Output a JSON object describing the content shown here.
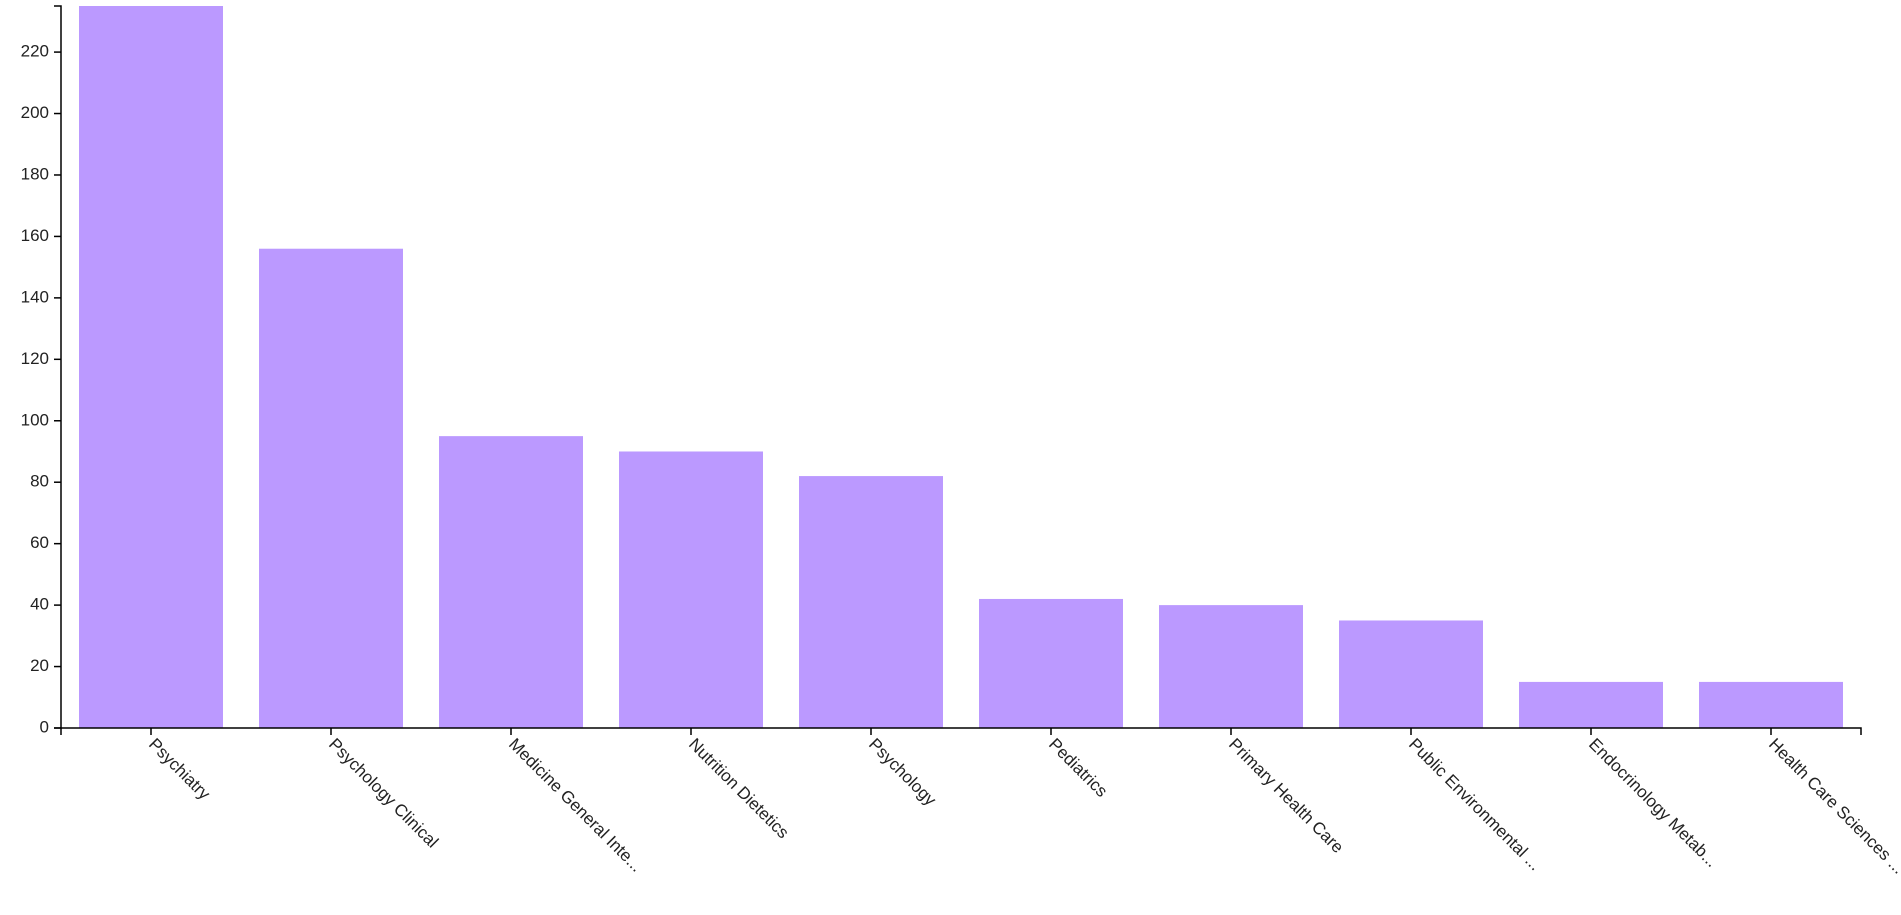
{
  "chart_data": {
    "type": "bar",
    "categories": [
      "Psychiatry",
      "Psychology Clinical",
      "Medicine General Inte...",
      "Nutrition Dietetics",
      "Psychology",
      "Pediatrics",
      "Primary Health Care",
      "Public Environmental ...",
      "Endocrinology Metab...",
      "Health Care Sciences ..."
    ],
    "values": [
      235,
      156,
      95,
      90,
      82,
      42,
      40,
      35,
      15,
      15
    ],
    "color": "#bb99ff",
    "ylim": [
      0,
      235
    ],
    "yticks": [
      0,
      20,
      40,
      60,
      80,
      100,
      120,
      140,
      160,
      180,
      200,
      220
    ]
  }
}
